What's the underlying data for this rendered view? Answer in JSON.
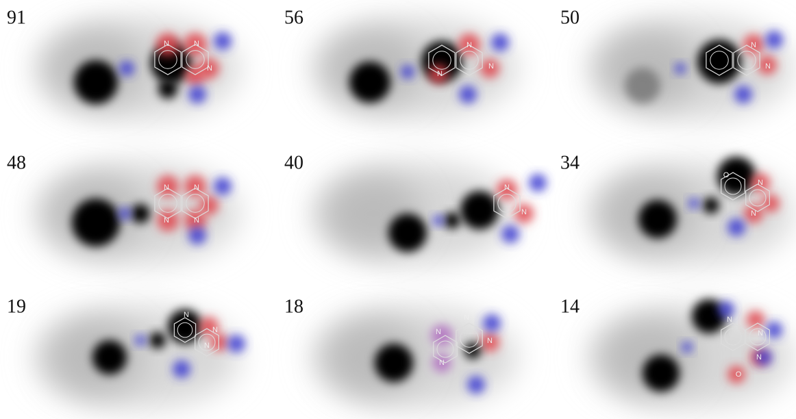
{
  "panels": [
    {
      "score": 91,
      "atoms": [
        "N",
        "N",
        "N"
      ]
    },
    {
      "score": 56,
      "atoms": [
        "N",
        "N",
        "N"
      ]
    },
    {
      "score": 50,
      "atoms": [
        "N",
        "N"
      ]
    },
    {
      "score": 48,
      "atoms": [
        "N",
        "N",
        "N",
        "N"
      ]
    },
    {
      "score": 40,
      "atoms": [
        "N",
        "N"
      ]
    },
    {
      "score": 34,
      "atoms": [
        "O",
        "N",
        "N"
      ]
    },
    {
      "score": 19,
      "atoms": [
        "N",
        "N",
        "N"
      ]
    },
    {
      "score": 18,
      "atoms": [
        "N",
        "N",
        "N",
        "N"
      ]
    },
    {
      "score": 14,
      "atoms": [
        "N",
        "N",
        "N",
        "O"
      ]
    }
  ]
}
